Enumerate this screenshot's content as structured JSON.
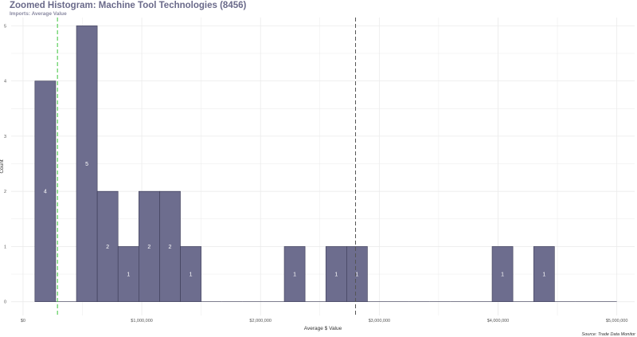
{
  "title": "Zoomed Histogram: Machine Tool Technologies (8456)",
  "subtitle": "Imports: Average Value",
  "caption": "Source: Trade Data Monitor",
  "colors": {
    "bar_fill": "#6d6d8e",
    "bar_stroke": "#3a3a55",
    "grid": "#ebebeb",
    "green_line": "#3cc43c",
    "dark_line": "#555555",
    "bar_label": "#ffffff",
    "text": "#555555"
  },
  "chart_data": {
    "type": "bar",
    "subtype": "histogram",
    "xlabel": "Average $ Value",
    "ylabel": "Count",
    "xlim": [
      -100000,
      5150000
    ],
    "ylim": [
      -0.25,
      5.15
    ],
    "bin_width": 175000,
    "x_ticks": [
      0,
      1000000,
      2000000,
      3000000,
      4000000,
      5000000
    ],
    "x_tick_labels": [
      "$0",
      "$1,000,000",
      "$2,000,000",
      "$3,000,000",
      "$4,000,000",
      "$5,000,000"
    ],
    "y_ticks": [
      0,
      1,
      2,
      3,
      4,
      5
    ],
    "y_tick_labels": [
      "0",
      "1",
      "2",
      "3",
      "4",
      "5"
    ],
    "bins": [
      {
        "start": 100000,
        "count": 4
      },
      {
        "start": 275000,
        "count": 0
      },
      {
        "start": 450000,
        "count": 5
      },
      {
        "start": 625000,
        "count": 2
      },
      {
        "start": 800000,
        "count": 1
      },
      {
        "start": 975000,
        "count": 2
      },
      {
        "start": 1150000,
        "count": 2
      },
      {
        "start": 1325000,
        "count": 1
      },
      {
        "start": 1500000,
        "count": 0
      },
      {
        "start": 1675000,
        "count": 0
      },
      {
        "start": 1850000,
        "count": 0
      },
      {
        "start": 2025000,
        "count": 0
      },
      {
        "start": 2200000,
        "count": 1
      },
      {
        "start": 2375000,
        "count": 0
      },
      {
        "start": 2550000,
        "count": 1
      },
      {
        "start": 2725000,
        "count": 1
      },
      {
        "start": 2900000,
        "count": 0
      },
      {
        "start": 3075000,
        "count": 0
      },
      {
        "start": 3250000,
        "count": 0
      },
      {
        "start": 3425000,
        "count": 0
      },
      {
        "start": 3600000,
        "count": 0
      },
      {
        "start": 3775000,
        "count": 0
      },
      {
        "start": 3950000,
        "count": 1
      },
      {
        "start": 4125000,
        "count": 0
      },
      {
        "start": 4300000,
        "count": 1
      },
      {
        "start": 4475000,
        "count": 0
      },
      {
        "start": 4650000,
        "count": 0
      },
      {
        "start": 4825000,
        "count": 0
      }
    ],
    "reference_lines": [
      {
        "x": 290000,
        "color": "#3cc43c",
        "style": "dashed"
      },
      {
        "x": 2800000,
        "color": "#555555",
        "style": "dashed"
      }
    ],
    "grid": true
  }
}
